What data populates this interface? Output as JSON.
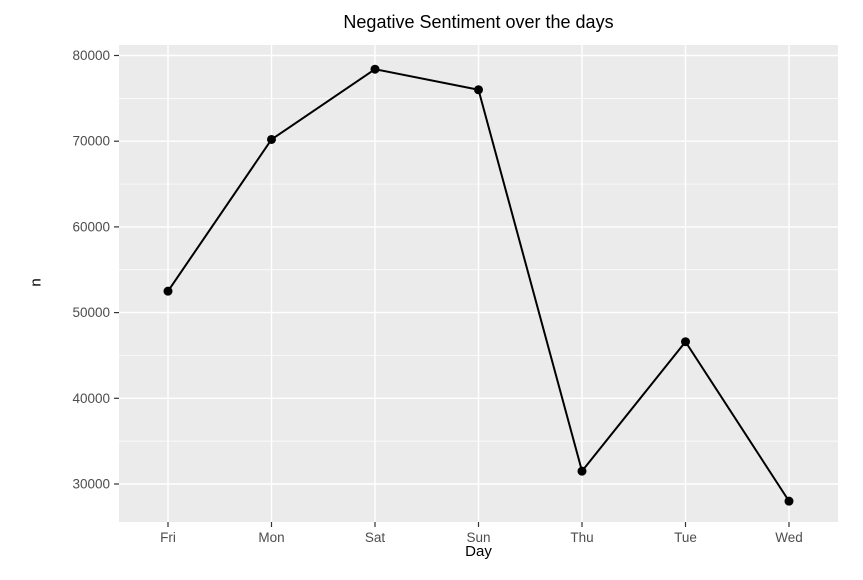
{
  "chart_data": {
    "type": "line",
    "title": "Negative Sentiment over the days",
    "xlabel": "Day",
    "ylabel": "n",
    "categories": [
      "Fri",
      "Mon",
      "Sat",
      "Sun",
      "Thu",
      "Tue",
      "Wed"
    ],
    "values": [
      52500,
      70200,
      78400,
      76000,
      31500,
      46600,
      28000
    ],
    "yticks": [
      30000,
      40000,
      50000,
      60000,
      70000,
      80000
    ],
    "ytick_labels": [
      "30000",
      "40000",
      "50000",
      "60000",
      "70000",
      "80000"
    ],
    "ylim": [
      25566,
      81225
    ],
    "grid": "horizontal majors and minors, vertical majors at categories",
    "legend_position": "none",
    "colors": {
      "panel_background": "#EBEBEB",
      "gridline": "#FFFFFF",
      "line": "#000000",
      "point": "#000000",
      "axis_text": "#4D4D4D",
      "tick_mark": "#333333",
      "title_text": "#000000"
    }
  }
}
